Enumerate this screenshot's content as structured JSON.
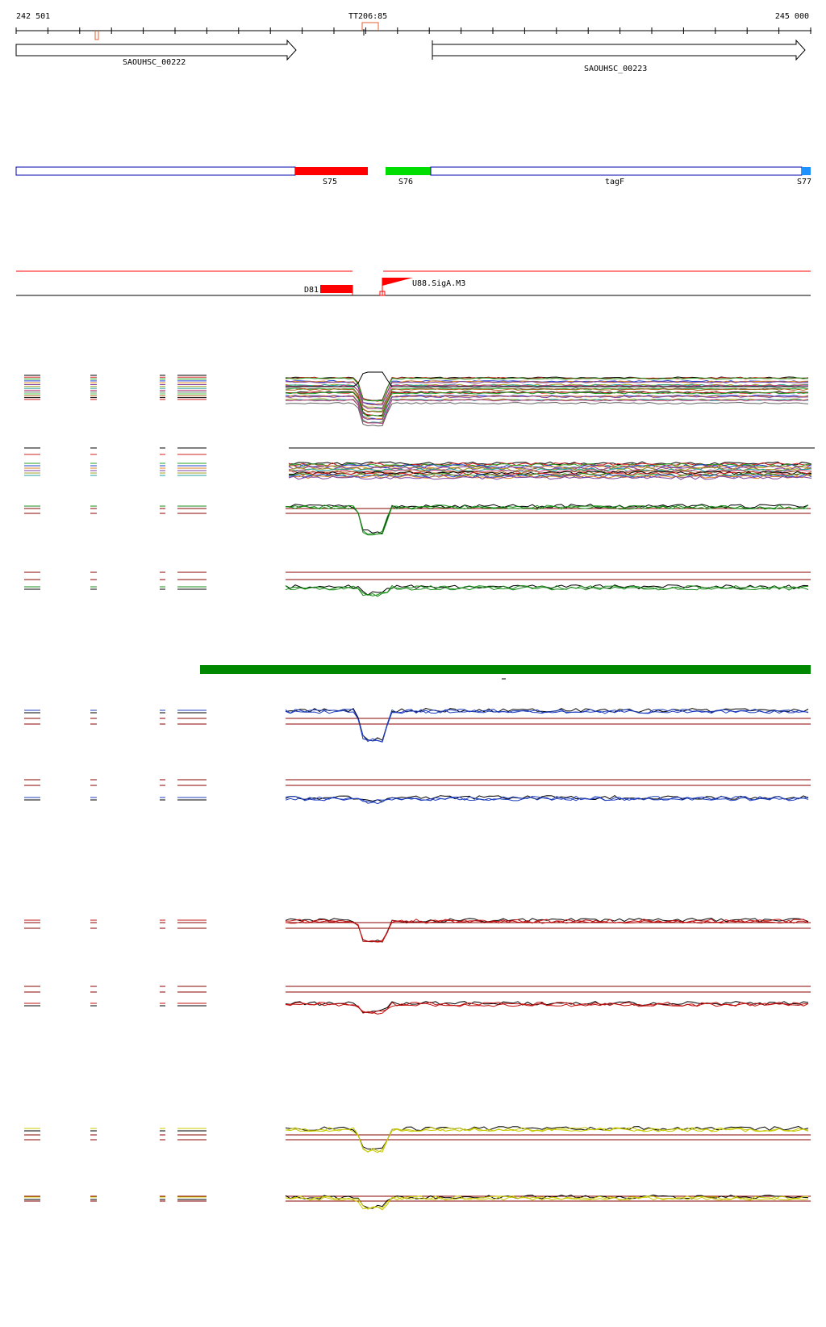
{
  "ruler": {
    "start_label": "242 501",
    "end_label": "245 000",
    "marker_label": "TT206:85"
  },
  "genes": [
    {
      "name": "SAOUHSC_00222",
      "strand": "+"
    },
    {
      "name": "SAOUHSC_00223",
      "strand": "+"
    }
  ],
  "segments": [
    {
      "label": "S75",
      "color": "#ff0000"
    },
    {
      "label": "S76",
      "color": "#00dd00"
    },
    {
      "label": "tagF",
      "color": "#ffffff"
    },
    {
      "label": "S77",
      "color": "#1e90ff"
    }
  ],
  "features": {
    "d81_label": "D81",
    "u88_label": "U88.SigA.M3"
  },
  "colors": {
    "axis": "#000000",
    "threshold": "#8b0000",
    "segment_border": "#0000aa",
    "green_bar": "#008800",
    "green_group": "#1a8c1a",
    "blue_group": "#1f3fbf",
    "red_group": "#c01010",
    "yellow_group": "#c8c800"
  }
}
